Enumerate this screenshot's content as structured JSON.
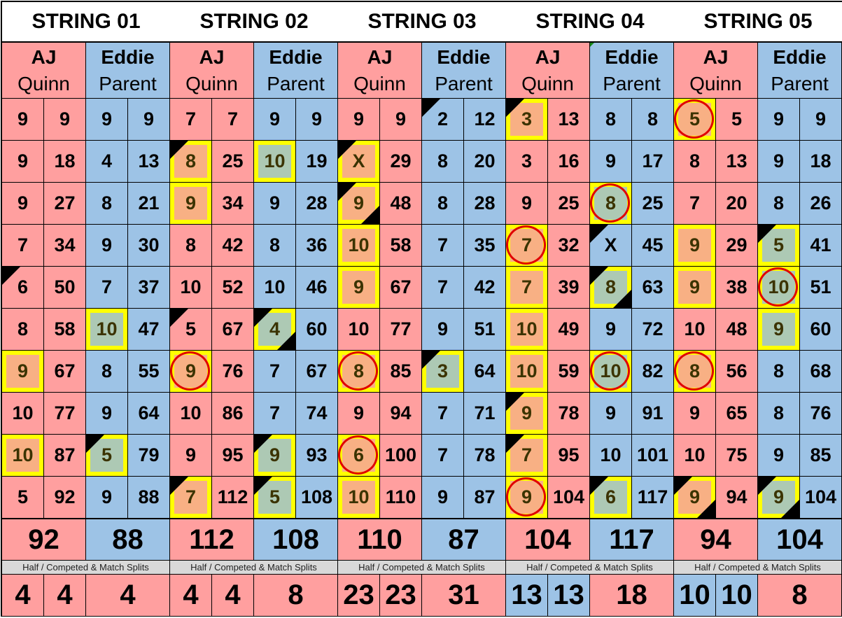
{
  "colors": {
    "aj": "#ff9f9f",
    "eddie": "#9dc3e6",
    "highlight_border": "#ffff00",
    "aj_highlight": "#f8b084",
    "eddie_highlight": "#adc9b4",
    "circle": "#e00000"
  },
  "marks_legend": {
    "h": "yellow-box",
    "c": "red-circle",
    "t": "top-left-triangle",
    "b": "bottom-right-triangle"
  },
  "strings": [
    {
      "title": "STRING 01",
      "players": [
        {
          "first": "AJ",
          "last": "Quinn",
          "frames": [
            {
              "v": "9",
              "m": ""
            },
            {
              "v": "9",
              "m": ""
            },
            {
              "v": "9",
              "m": ""
            },
            {
              "v": "7",
              "m": ""
            },
            {
              "v": "6",
              "m": "t"
            },
            {
              "v": "8",
              "m": ""
            },
            {
              "v": "9",
              "m": "h"
            },
            {
              "v": "10",
              "m": ""
            },
            {
              "v": "10",
              "m": "h"
            },
            {
              "v": "5",
              "m": ""
            }
          ],
          "cums": [
            "9",
            "18",
            "27",
            "34",
            "50",
            "58",
            "67",
            "77",
            "87",
            "92"
          ],
          "total": "92"
        },
        {
          "first": "Eddie",
          "last": "Parent",
          "frames": [
            {
              "v": "9",
              "m": ""
            },
            {
              "v": "4",
              "m": ""
            },
            {
              "v": "8",
              "m": ""
            },
            {
              "v": "9",
              "m": ""
            },
            {
              "v": "7",
              "m": ""
            },
            {
              "v": "10",
              "m": "h"
            },
            {
              "v": "8",
              "m": ""
            },
            {
              "v": "9",
              "m": ""
            },
            {
              "v": "5",
              "m": "ht"
            },
            {
              "v": "9",
              "m": ""
            }
          ],
          "cums": [
            "9",
            "13",
            "21",
            "30",
            "37",
            "47",
            "55",
            "64",
            "79",
            "88"
          ],
          "total": "88"
        }
      ],
      "split_label": "Half / Competed & Match Splits",
      "splits": [
        {
          "v": "4",
          "side": "aj"
        },
        {
          "v": "4",
          "side": "aj"
        },
        {
          "v": "4",
          "side": "aj"
        }
      ]
    },
    {
      "title": "STRING 02",
      "players": [
        {
          "first": "AJ",
          "last": "Quinn",
          "frames": [
            {
              "v": "7",
              "m": ""
            },
            {
              "v": "8",
              "m": "ht"
            },
            {
              "v": "9",
              "m": "h"
            },
            {
              "v": "8",
              "m": ""
            },
            {
              "v": "10",
              "m": ""
            },
            {
              "v": "5",
              "m": "t"
            },
            {
              "v": "9",
              "m": "hc"
            },
            {
              "v": "10",
              "m": ""
            },
            {
              "v": "9",
              "m": ""
            },
            {
              "v": "7",
              "m": "ht"
            }
          ],
          "cums": [
            "7",
            "25",
            "34",
            "42",
            "52",
            "67",
            "76",
            "86",
            "95",
            "112"
          ],
          "total": "112"
        },
        {
          "first": "Eddie",
          "last": "Parent",
          "frames": [
            {
              "v": "9",
              "m": ""
            },
            {
              "v": "10",
              "m": "h"
            },
            {
              "v": "9",
              "m": ""
            },
            {
              "v": "8",
              "m": ""
            },
            {
              "v": "10",
              "m": ""
            },
            {
              "v": "4",
              "m": "htb"
            },
            {
              "v": "7",
              "m": ""
            },
            {
              "v": "7",
              "m": ""
            },
            {
              "v": "9",
              "m": "ht"
            },
            {
              "v": "5",
              "m": "ht"
            }
          ],
          "cums": [
            "9",
            "19",
            "28",
            "36",
            "46",
            "60",
            "67",
            "74",
            "93",
            "108"
          ],
          "total": "108"
        }
      ],
      "split_label": "Half / Competed & Match Splits",
      "splits": [
        {
          "v": "4",
          "side": "aj"
        },
        {
          "v": "4",
          "side": "aj"
        },
        {
          "v": "8",
          "side": "aj"
        }
      ]
    },
    {
      "title": "STRING 03",
      "players": [
        {
          "first": "AJ",
          "last": "Quinn",
          "frames": [
            {
              "v": "9",
              "m": ""
            },
            {
              "v": "X",
              "m": "ht"
            },
            {
              "v": "9",
              "m": "htb"
            },
            {
              "v": "10",
              "m": "h"
            },
            {
              "v": "9",
              "m": "h"
            },
            {
              "v": "10",
              "m": ""
            },
            {
              "v": "8",
              "m": "hc"
            },
            {
              "v": "9",
              "m": ""
            },
            {
              "v": "6",
              "m": "hc"
            },
            {
              "v": "10",
              "m": "h"
            }
          ],
          "cums": [
            "9",
            "29",
            "48",
            "58",
            "67",
            "77",
            "85",
            "94",
            "100",
            "110"
          ],
          "total": "110"
        },
        {
          "first": "Eddie",
          "last": "Parent",
          "frames": [
            {
              "v": "2",
              "m": "t"
            },
            {
              "v": "8",
              "m": ""
            },
            {
              "v": "8",
              "m": ""
            },
            {
              "v": "7",
              "m": ""
            },
            {
              "v": "7",
              "m": ""
            },
            {
              "v": "9",
              "m": ""
            },
            {
              "v": "3",
              "m": "ht"
            },
            {
              "v": "7",
              "m": ""
            },
            {
              "v": "7",
              "m": ""
            },
            {
              "v": "9",
              "m": ""
            }
          ],
          "cums": [
            "12",
            "20",
            "28",
            "35",
            "42",
            "51",
            "64",
            "71",
            "78",
            "87"
          ],
          "total": "87"
        }
      ],
      "split_label": "Half / Competed & Match Splits",
      "splits": [
        {
          "v": "23",
          "side": "aj"
        },
        {
          "v": "23",
          "side": "aj"
        },
        {
          "v": "31",
          "side": "aj"
        }
      ]
    },
    {
      "title": "STRING 04",
      "players": [
        {
          "first": "AJ",
          "last": "Quinn",
          "frames": [
            {
              "v": "3",
              "m": "ht"
            },
            {
              "v": "3",
              "m": ""
            },
            {
              "v": "9",
              "m": ""
            },
            {
              "v": "7",
              "m": "hc"
            },
            {
              "v": "7",
              "m": "h"
            },
            {
              "v": "10",
              "m": "h"
            },
            {
              "v": "10",
              "m": "h"
            },
            {
              "v": "9",
              "m": "ht"
            },
            {
              "v": "7",
              "m": "ht"
            },
            {
              "v": "9",
              "m": "hc"
            }
          ],
          "cums": [
            "13",
            "16",
            "25",
            "32",
            "39",
            "49",
            "59",
            "78",
            "95",
            "104"
          ],
          "total": "104"
        },
        {
          "first": "Eddie",
          "last": "Parent",
          "frames": [
            {
              "v": "8",
              "m": ""
            },
            {
              "v": "9",
              "m": ""
            },
            {
              "v": "8",
              "m": "hc"
            },
            {
              "v": "X",
              "m": "t"
            },
            {
              "v": "8",
              "m": "htb"
            },
            {
              "v": "9",
              "m": ""
            },
            {
              "v": "10",
              "m": "hc"
            },
            {
              "v": "9",
              "m": ""
            },
            {
              "v": "10",
              "m": ""
            },
            {
              "v": "6",
              "m": "ht"
            }
          ],
          "cums": [
            "8",
            "17",
            "25",
            "45",
            "63",
            "72",
            "82",
            "91",
            "101",
            "117"
          ],
          "total": "117"
        }
      ],
      "split_label": "Half / Competed & Match Splits",
      "splits": [
        {
          "v": "13",
          "side": "eddie"
        },
        {
          "v": "13",
          "side": "eddie"
        },
        {
          "v": "18",
          "side": "aj"
        }
      ]
    },
    {
      "title": "STRING 05",
      "players": [
        {
          "first": "AJ",
          "last": "Quinn",
          "frames": [
            {
              "v": "5",
              "m": "hc"
            },
            {
              "v": "8",
              "m": ""
            },
            {
              "v": "7",
              "m": ""
            },
            {
              "v": "9",
              "m": "h"
            },
            {
              "v": "9",
              "m": "h"
            },
            {
              "v": "10",
              "m": ""
            },
            {
              "v": "8",
              "m": "hc"
            },
            {
              "v": "9",
              "m": ""
            },
            {
              "v": "10",
              "m": ""
            },
            {
              "v": "9",
              "m": "htb"
            }
          ],
          "cums": [
            "5",
            "13",
            "20",
            "29",
            "38",
            "48",
            "56",
            "65",
            "75",
            "94"
          ],
          "total": "94"
        },
        {
          "first": "Eddie",
          "last": "Parent",
          "frames": [
            {
              "v": "9",
              "m": ""
            },
            {
              "v": "9",
              "m": ""
            },
            {
              "v": "8",
              "m": ""
            },
            {
              "v": "5",
              "m": "ht"
            },
            {
              "v": "10",
              "m": "hc"
            },
            {
              "v": "9",
              "m": "h"
            },
            {
              "v": "8",
              "m": ""
            },
            {
              "v": "8",
              "m": ""
            },
            {
              "v": "9",
              "m": ""
            },
            {
              "v": "9",
              "m": "htb"
            }
          ],
          "cums": [
            "9",
            "18",
            "26",
            "41",
            "51",
            "60",
            "68",
            "76",
            "85",
            "104"
          ],
          "total": "104"
        }
      ],
      "split_label": "Half / Competed & Match Splits",
      "splits": [
        {
          "v": "10",
          "side": "eddie"
        },
        {
          "v": "10",
          "side": "eddie"
        },
        {
          "v": "8",
          "side": "aj"
        }
      ]
    }
  ]
}
